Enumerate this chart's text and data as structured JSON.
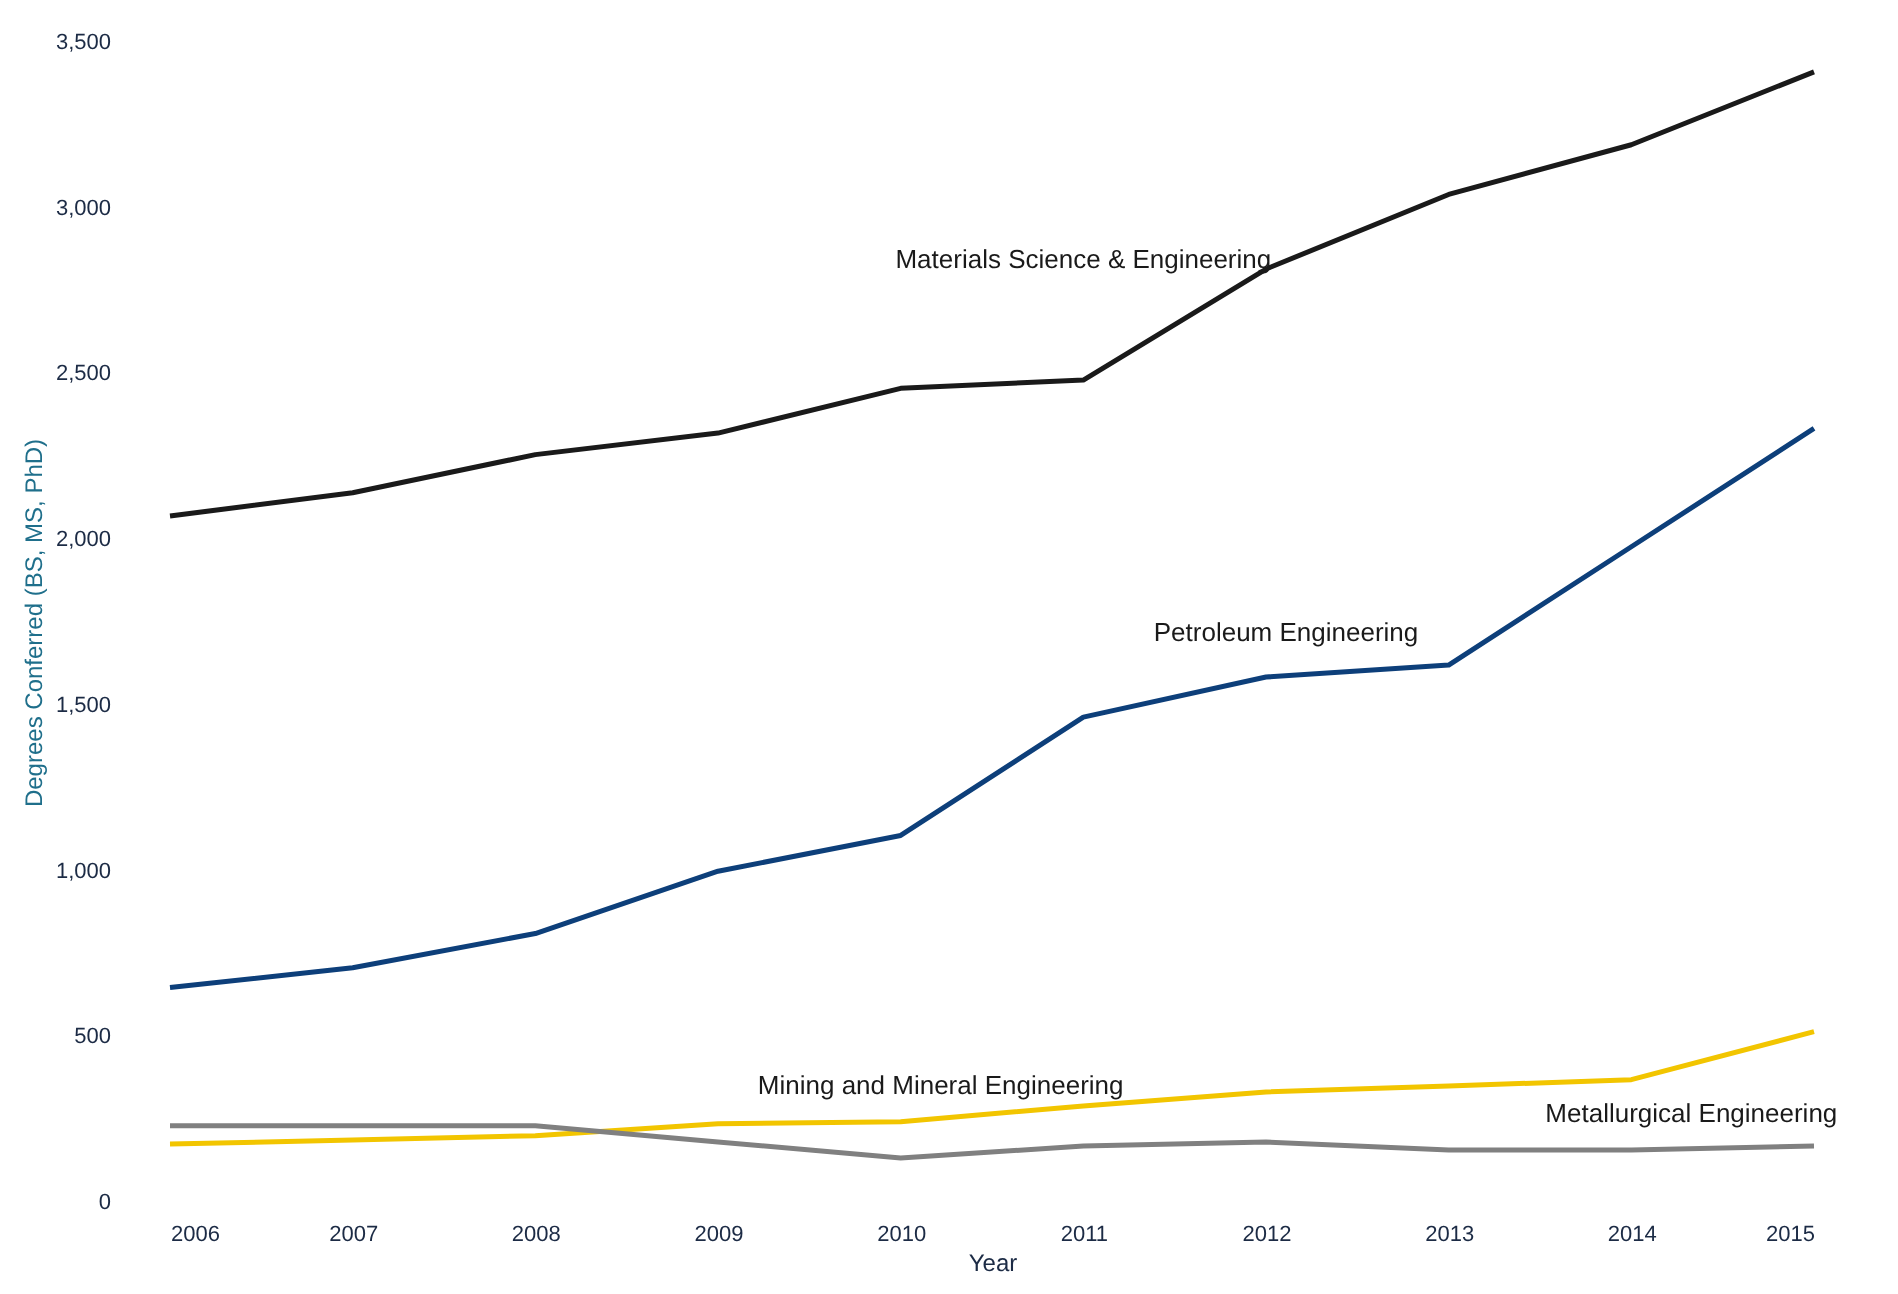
{
  "chart_data": {
    "type": "line",
    "xlabel": "Year",
    "ylabel": "Degrees Conferred (BS, MS, PhD)",
    "x": [
      2006,
      2007,
      2008,
      2009,
      2010,
      2011,
      2012,
      2013,
      2014,
      2015
    ],
    "xlim": [
      2006,
      2015
    ],
    "xticks": [
      2006,
      2007,
      2008,
      2009,
      2010,
      2011,
      2012,
      2013,
      2014,
      2015
    ],
    "ylim": [
      0,
      3500
    ],
    "yticks": [
      0,
      {
        "value": 500,
        "label": "500"
      },
      {
        "value": 1000,
        "label": "1,000"
      },
      {
        "value": 1500,
        "label": "1,500"
      },
      {
        "value": 2000,
        "label": "2,000"
      },
      {
        "value": 2500,
        "label": "2,500"
      },
      {
        "value": 3000,
        "label": "3,000"
      },
      {
        "value": 3500,
        "label": "3,500"
      }
    ],
    "grid": false,
    "legend": false,
    "marker": "none",
    "line_style": "solid",
    "series": [
      {
        "name": "Materials Science & Engineering",
        "color": "#1a1a1a",
        "values": [
          2070,
          2140,
          2255,
          2320,
          2455,
          2480,
          2815,
          3040,
          3190,
          3410
        ]
      },
      {
        "name": "Petroleum Engineering",
        "color": "#0d3f7a",
        "values": [
          647,
          707,
          810,
          998,
          1106,
          1463,
          1584,
          1620,
          1977,
          2334
        ]
      },
      {
        "name": "Mining and Mineral Engineering",
        "color": "#f2c500",
        "values": [
          175,
          187,
          200,
          236,
          242,
          290,
          332,
          350,
          369,
          514
        ]
      },
      {
        "name": "Metallurgical Engineering",
        "color": "#808080",
        "values": [
          230,
          230,
          230,
          181,
          133,
          169,
          181,
          157,
          157,
          169
        ]
      }
    ]
  }
}
